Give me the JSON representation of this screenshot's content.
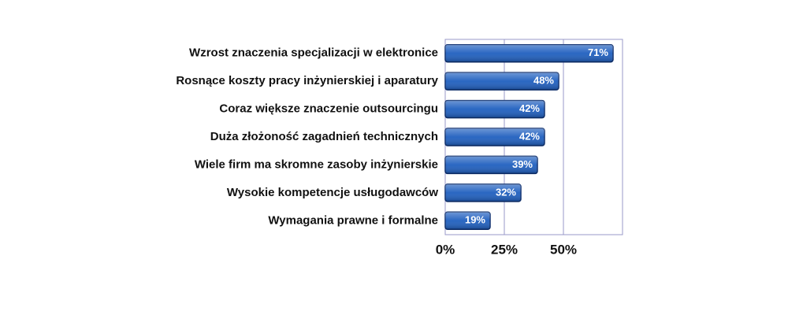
{
  "chart_data": {
    "type": "barh",
    "categories": [
      "Wzrost znaczenia specjalizacji w elektronice",
      "Rosnące koszty pracy inżynierskiej i aparatury",
      "Coraz większe znaczenie outsourcingu",
      "Duża złożoność zagadnień technicznych",
      "Wiele firm ma skromne zasoby inżynierskie",
      "Wysokie kompetencje usługodawców",
      "Wymagania prawne i formalne"
    ],
    "values": [
      71,
      48,
      42,
      42,
      39,
      32,
      19
    ],
    "value_labels": [
      "71%",
      "48%",
      "42%",
      "42%",
      "39%",
      "32%",
      "19%"
    ],
    "color": "#1f5fbf",
    "xlim": [
      0,
      75
    ],
    "xticks": [
      {
        "value": 0,
        "label": "0%"
      },
      {
        "value": 25,
        "label": "25%"
      },
      {
        "value": 50,
        "label": "50%"
      }
    ],
    "grid": true
  }
}
